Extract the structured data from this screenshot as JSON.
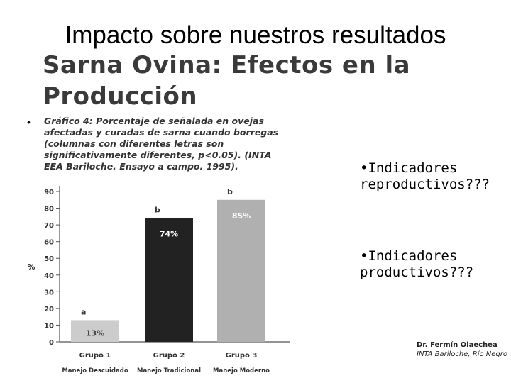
{
  "slide": {
    "title": "Impacto sobre nuestros resultados",
    "heading_line1": "Sarna Ovina: Efectos en la",
    "heading_line2": "Producción",
    "bullet": "•",
    "caption": "Gráfico 4: Porcentaje de señalada en ovejas afectadas y curadas de sarna cuando borregas (columnas con diferentes letras son significativamente diferentes, p<0.05). (INTA EEA Bariloche. Ensayo a campo. 1995).",
    "side_text_1": "•Indicadores reproductivos???",
    "side_text_2": "•Indicadores productivos???",
    "credit_name": "Dr. Fermín Olaechea",
    "credit_org": "INTA Bariloche, Río Negro"
  },
  "chart_data": {
    "type": "bar",
    "categories": [
      "Grupo 1",
      "Grupo 2",
      "Grupo 3"
    ],
    "sublabels": [
      "Manejo Descuidado",
      "Manejo Tradicional",
      "Manejo Moderno"
    ],
    "values": [
      13,
      74,
      85
    ],
    "value_labels": [
      "13%",
      "74%",
      "85%"
    ],
    "letters": [
      "a",
      "b",
      "b"
    ],
    "colors": [
      "#cccccc",
      "#222222",
      "#b0b0b0"
    ],
    "value_label_colors": [
      "#444444",
      "#ffffff",
      "#ffffff"
    ],
    "ylabel": "%",
    "ylim": [
      0,
      90
    ],
    "yticks": [
      0,
      10,
      20,
      30,
      40,
      50,
      60,
      70,
      80,
      90
    ],
    "grid": false
  }
}
